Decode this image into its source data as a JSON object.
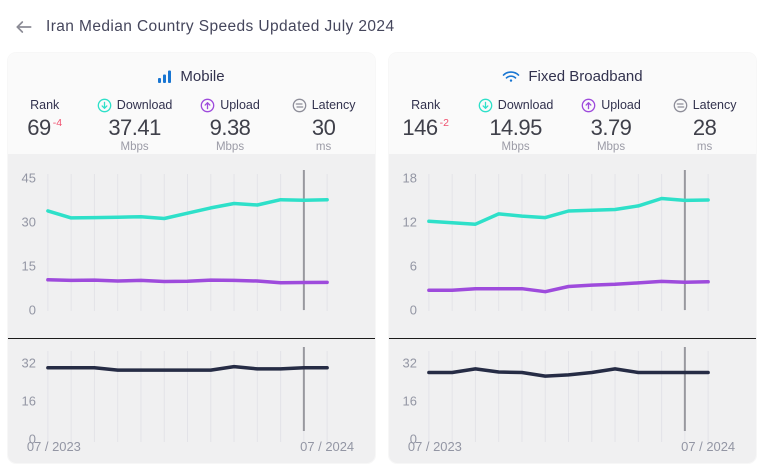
{
  "header": {
    "title": "Iran Median Country Speeds Updated July 2024"
  },
  "colors": {
    "brand_blue": "#1976D2",
    "teal": "#2EE0C9",
    "purple": "#9E4BDC",
    "navy": "#262C45",
    "rank_change_red": "#F0506E",
    "grid": "#E3E3E8",
    "marker": "#98989E",
    "axis_text": "#9396A4"
  },
  "cards": [
    {
      "title": "Mobile",
      "icon": "mobile-signal-bars-icon",
      "stats": [
        {
          "label": "Rank",
          "value": "69",
          "change": "-4",
          "unit": ""
        },
        {
          "label": "Download",
          "value": "37.41",
          "unit": "Mbps",
          "icon": "download-icon"
        },
        {
          "label": "Upload",
          "value": "9.38",
          "unit": "Mbps",
          "icon": "upload-icon"
        },
        {
          "label": "Latency",
          "value": "30",
          "unit": "ms",
          "icon": "latency-icon"
        }
      ]
    },
    {
      "title": "Fixed Broadband",
      "icon": "wifi-icon",
      "stats": [
        {
          "label": "Rank",
          "value": "146",
          "change": "-2",
          "unit": ""
        },
        {
          "label": "Download",
          "value": "14.95",
          "unit": "Mbps",
          "icon": "download-icon"
        },
        {
          "label": "Upload",
          "value": "3.79",
          "unit": "Mbps",
          "icon": "upload-icon"
        },
        {
          "label": "Latency",
          "value": "28",
          "unit": "ms",
          "icon": "latency-icon"
        }
      ]
    }
  ],
  "chart_data": [
    {
      "id": "mobile-speeds",
      "type": "line",
      "title": "Mobile download and upload speed, monthly 07/2023-07/2024",
      "ylim": [
        0,
        45
      ],
      "yticks": [
        45,
        30,
        15,
        0
      ],
      "marker_index": 11,
      "grid": "vertical",
      "series": [
        {
          "name": "Download (Mbps)",
          "color": "#2EE0C9",
          "values": [
            33.8,
            31.4,
            31.5,
            31.6,
            31.8,
            31.2,
            33.0,
            34.8,
            36.3,
            35.8,
            37.6,
            37.41,
            37.6
          ]
        },
        {
          "name": "Upload (Mbps)",
          "color": "#9E4BDC",
          "values": [
            10.3,
            10.1,
            10.2,
            9.9,
            10.1,
            9.7,
            9.8,
            10.2,
            10.1,
            9.9,
            9.3,
            9.38,
            9.4
          ]
        }
      ]
    },
    {
      "id": "mobile-latency",
      "type": "line",
      "title": "Mobile latency, monthly 07/2023-07/2024",
      "ylim": [
        0,
        32
      ],
      "yticks": [
        32,
        16,
        0
      ],
      "marker_index": 11,
      "grid": "vertical",
      "x_ticklabels": [
        "07 / 2023",
        "07 / 2024"
      ],
      "series": [
        {
          "name": "Latency (ms)",
          "color": "#262C45",
          "values": [
            30,
            30,
            30,
            29,
            29,
            29,
            29,
            29,
            30.5,
            29.5,
            29.5,
            30,
            30
          ]
        }
      ]
    },
    {
      "id": "fixed-speeds",
      "type": "line",
      "title": "Fixed broadband download and upload speed, monthly 07/2023-07/2024",
      "ylim": [
        0,
        18
      ],
      "yticks": [
        18,
        12,
        6,
        0
      ],
      "marker_index": 11,
      "grid": "vertical",
      "series": [
        {
          "name": "Download (Mbps)",
          "color": "#2EE0C9",
          "values": [
            12.1,
            11.9,
            11.7,
            13.1,
            12.8,
            12.6,
            13.5,
            13.6,
            13.7,
            14.2,
            15.2,
            14.95,
            15.0
          ]
        },
        {
          "name": "Upload (Mbps)",
          "color": "#9E4BDC",
          "values": [
            2.7,
            2.7,
            2.9,
            2.9,
            2.9,
            2.5,
            3.2,
            3.4,
            3.5,
            3.7,
            3.9,
            3.79,
            3.85
          ]
        }
      ]
    },
    {
      "id": "fixed-latency",
      "type": "line",
      "title": "Fixed broadband latency, monthly 07/2023-07/2024",
      "ylim": [
        0,
        32
      ],
      "yticks": [
        32,
        16,
        0
      ],
      "marker_index": 11,
      "grid": "vertical",
      "x_ticklabels": [
        "07 / 2023",
        "07 / 2024"
      ],
      "series": [
        {
          "name": "Latency (ms)",
          "color": "#262C45",
          "values": [
            28,
            28,
            29.5,
            28.2,
            28,
            26.5,
            27,
            28,
            29.5,
            28,
            28,
            28,
            28
          ]
        }
      ]
    }
  ]
}
